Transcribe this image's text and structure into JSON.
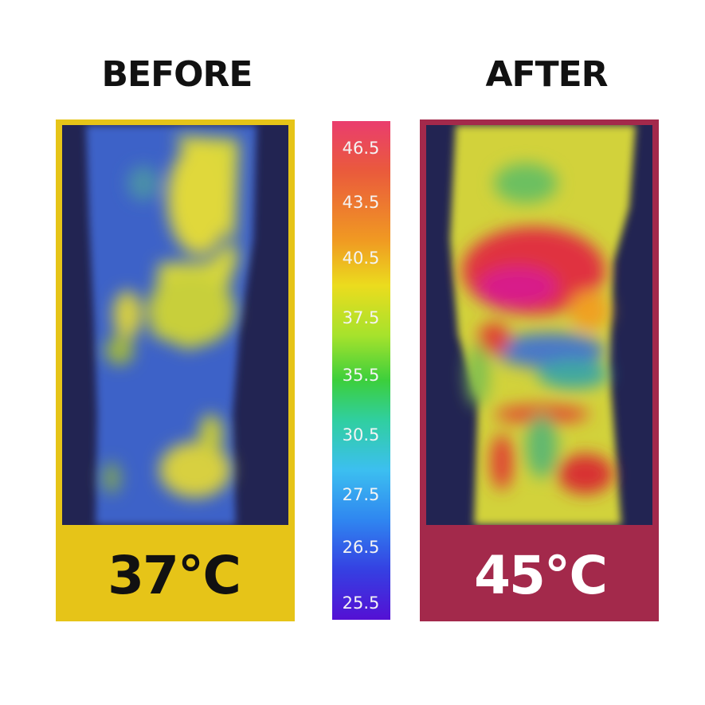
{
  "before": {
    "title": "BEFORE",
    "temperature": "37℃"
  },
  "after": {
    "title": "AFTER",
    "temperature": "45℃"
  },
  "scale": {
    "labels": [
      "46.5",
      "43.5",
      "40.5",
      "37.5",
      "35.5",
      "30.5",
      "27.5",
      "26.5",
      "25.5"
    ]
  }
}
